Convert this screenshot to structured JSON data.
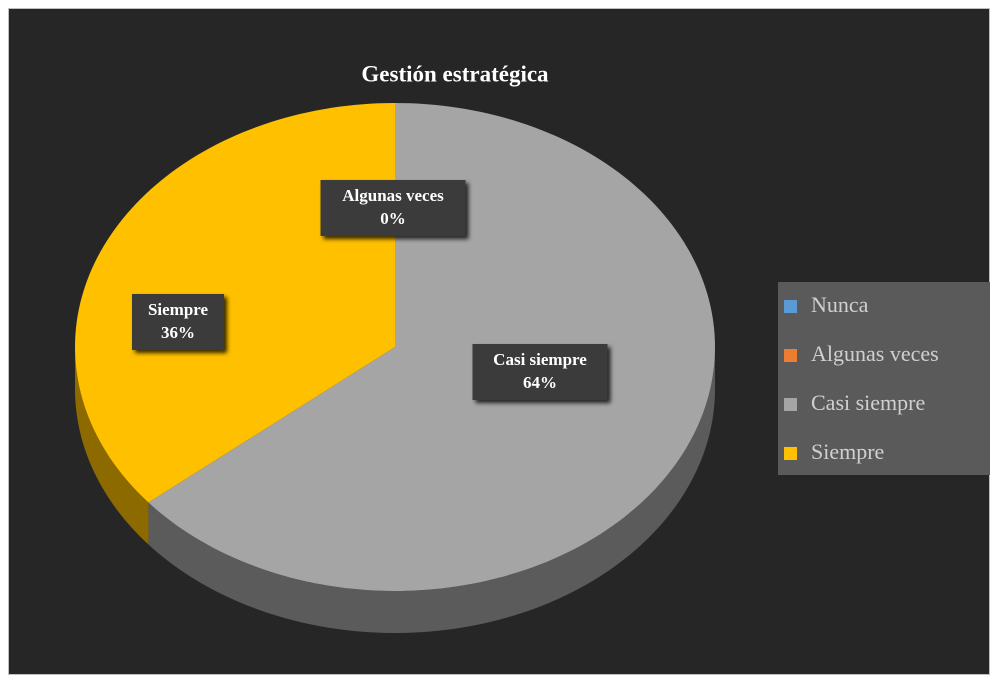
{
  "chart_data": {
    "type": "pie",
    "title": "Gestión estratégica",
    "categories": [
      "Nunca",
      "Algunas veces",
      "Casi siempre",
      "Siempre"
    ],
    "values": [
      0,
      0,
      64,
      36
    ],
    "value_labels": [
      null,
      "0%",
      "64%",
      "36%"
    ],
    "colors": [
      "#5b9bd5",
      "#ed7d31",
      "#a5a5a5",
      "#ffc000"
    ],
    "legend": "right"
  }
}
